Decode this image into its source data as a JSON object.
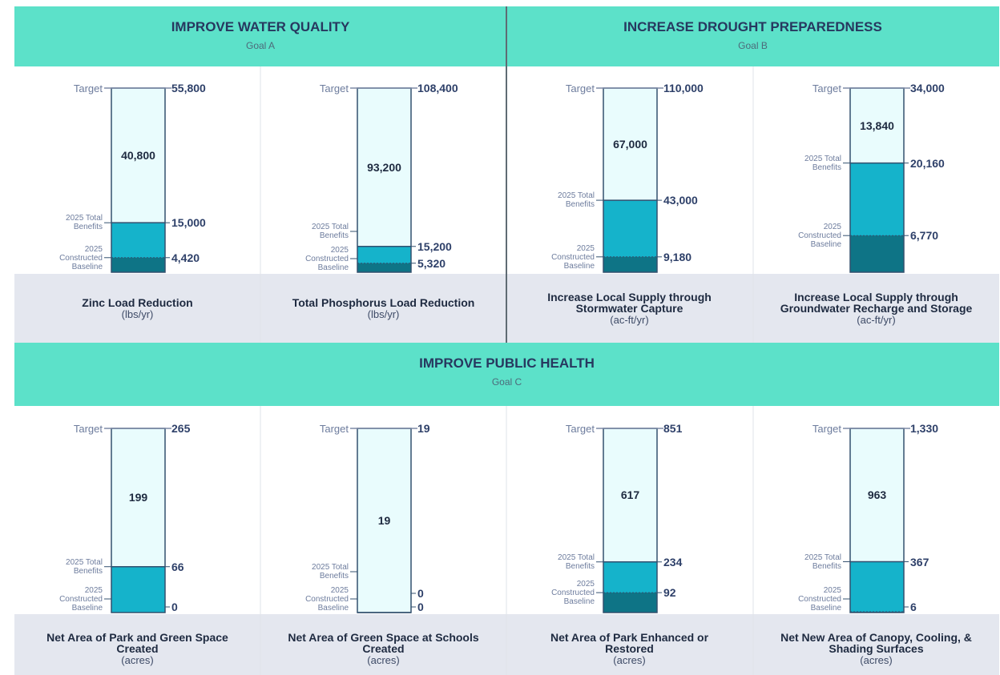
{
  "goals": [
    {
      "title": "IMPROVE WATER QUALITY",
      "subtitle": "Goal A"
    },
    {
      "title": "INCREASE DROUGHT PREPAREDNESS",
      "subtitle": "Goal B"
    },
    {
      "title": "IMPROVE PUBLIC HEALTH",
      "subtitle": "Goal C"
    }
  ],
  "chart_data": [
    {
      "type": "bar",
      "title": "Zinc Load Reduction",
      "unit": "(lbs/yr)",
      "ylim": [
        0,
        55800
      ],
      "series": [
        {
          "name": "Target",
          "color": "#e9fcfd",
          "values": [
            55800
          ],
          "value_labels": [
            "55,800"
          ]
        },
        {
          "name": "2025 Total Benefits",
          "color": "#15b3cb",
          "values": [
            15000
          ],
          "value_labels": [
            "15,000"
          ]
        },
        {
          "name": "2025 Constructed Baseline",
          "color": "#0e7486",
          "values": [
            4420
          ],
          "value_labels": [
            "4,420"
          ]
        }
      ],
      "remaining": {
        "value": 40800,
        "label": "40,800"
      }
    },
    {
      "type": "bar",
      "title": "Total Phosphorus Load Reduction",
      "unit": "(lbs/yr)",
      "ylim": [
        0,
        108400
      ],
      "series": [
        {
          "name": "Target",
          "color": "#e9fcfd",
          "values": [
            108400
          ],
          "value_labels": [
            "108,400"
          ]
        },
        {
          "name": "2025 Total Benefits",
          "color": "#15b3cb",
          "values": [
            15200
          ],
          "value_labels": [
            "15,200"
          ]
        },
        {
          "name": "2025 Constructed Baseline",
          "color": "#0e7486",
          "values": [
            5320
          ],
          "value_labels": [
            "5,320"
          ]
        }
      ],
      "remaining": {
        "value": 93200,
        "label": "93,200"
      }
    },
    {
      "type": "bar",
      "title": "Increase Local Supply through Stormwater Capture",
      "unit": "(ac-ft/yr)",
      "ylim": [
        0,
        110000
      ],
      "series": [
        {
          "name": "Target",
          "color": "#e9fcfd",
          "values": [
            110000
          ],
          "value_labels": [
            "110,000"
          ]
        },
        {
          "name": "2025 Total Benefits",
          "color": "#15b3cb",
          "values": [
            43000
          ],
          "value_labels": [
            "43,000"
          ]
        },
        {
          "name": "2025 Constructed Baseline",
          "color": "#0e7486",
          "values": [
            9180
          ],
          "value_labels": [
            "9,180"
          ]
        }
      ],
      "remaining": {
        "value": 67000,
        "label": "67,000"
      }
    },
    {
      "type": "bar",
      "title": "Increase Local Supply through Groundwater Recharge and Storage",
      "unit": "(ac-ft/yr)",
      "ylim": [
        0,
        34000
      ],
      "series": [
        {
          "name": "Target",
          "color": "#e9fcfd",
          "values": [
            34000
          ],
          "value_labels": [
            "34,000"
          ]
        },
        {
          "name": "2025 Total Benefits",
          "color": "#15b3cb",
          "values": [
            20160
          ],
          "value_labels": [
            "20,160"
          ]
        },
        {
          "name": "2025 Constructed Baseline",
          "color": "#0e7486",
          "values": [
            6770
          ],
          "value_labels": [
            "6,770"
          ]
        }
      ],
      "remaining": {
        "value": 13840,
        "label": "13,840"
      }
    },
    {
      "type": "bar",
      "title": "Net Area of Park and Green Space Created",
      "unit": "(acres)",
      "ylim": [
        0,
        265
      ],
      "series": [
        {
          "name": "Target",
          "color": "#e9fcfd",
          "values": [
            265
          ]
        },
        {
          "name": "2025 Total Benefits",
          "color": "#15b3cb",
          "values": [
            66
          ]
        },
        {
          "name": "2025 Constructed Baseline",
          "color": "#0e7486",
          "values": [
            0
          ]
        }
      ],
      "remaining": {
        "value": 199
      }
    },
    {
      "type": "bar",
      "title": "Net Area of Green Space at Schools Created",
      "unit": "(acres)",
      "ylim": [
        0,
        19
      ],
      "series": [
        {
          "name": "Target",
          "color": "#e9fcfd",
          "values": [
            19
          ]
        },
        {
          "name": "2025 Total Benefits",
          "color": "#15b3cb",
          "values": [
            0
          ]
        },
        {
          "name": "2025 Constructed Baseline",
          "color": "#0e7486",
          "values": [
            0
          ]
        }
      ],
      "remaining": {
        "value": 19
      }
    },
    {
      "type": "bar",
      "title": "Net Area of Park Enhanced or Restored",
      "unit": "(acres)",
      "ylim": [
        0,
        851
      ],
      "series": [
        {
          "name": "Target",
          "color": "#e9fcfd",
          "values": [
            851
          ]
        },
        {
          "name": "2025 Total Benefits",
          "color": "#15b3cb",
          "values": [
            234
          ]
        },
        {
          "name": "2025 Constructed Baseline",
          "color": "#0e7486",
          "values": [
            92
          ]
        }
      ],
      "remaining": {
        "value": 617
      }
    },
    {
      "type": "bar",
      "title": "Net New Area of  Canopy, Cooling, & Shading Surfaces",
      "unit": "(acres)",
      "ylim": [
        0,
        1330
      ],
      "series": [
        {
          "name": "Target",
          "color": "#e9fcfd",
          "values": [
            1330
          ],
          "value_labels": [
            "1,330"
          ]
        },
        {
          "name": "2025 Total Benefits",
          "color": "#15b3cb",
          "values": [
            367
          ]
        },
        {
          "name": "2025 Constructed Baseline",
          "color": "#0e7486",
          "values": [
            6
          ]
        }
      ],
      "remaining": {
        "value": 963
      }
    }
  ]
}
